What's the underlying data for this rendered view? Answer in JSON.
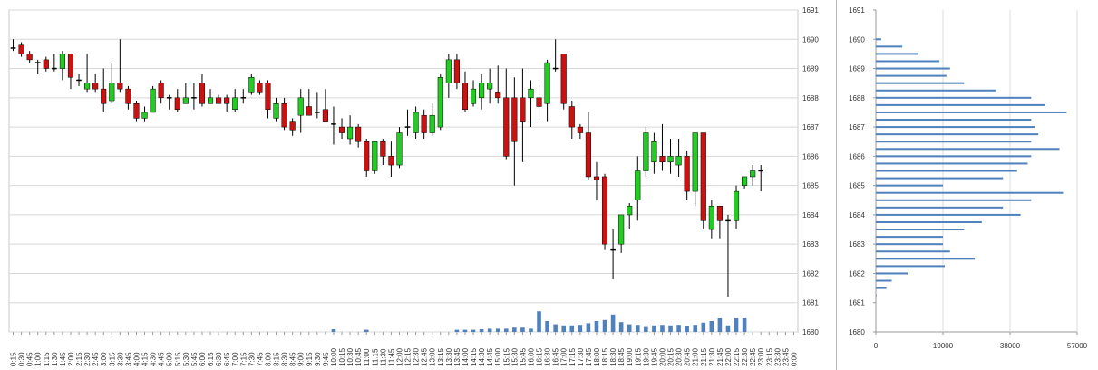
{
  "chart_data": [
    {
      "type": "candlestick",
      "title": "",
      "xlabel": "",
      "ylabel": "",
      "ylim": [
        1680,
        1691
      ],
      "yticks": [
        1680,
        1681,
        1682,
        1683,
        1684,
        1685,
        1686,
        1687,
        1688,
        1689,
        1690,
        1691
      ],
      "grid": true,
      "colors": {
        "up": "#22cc22",
        "down": "#cc1111",
        "volume": "#4f81bd",
        "grid": "#d8d8d8"
      },
      "x_labels": [
        "0:15",
        "0:30",
        "0:45",
        "1:00",
        "1:15",
        "1:30",
        "1:45",
        "2:00",
        "2:15",
        "2:30",
        "2:45",
        "3:00",
        "3:15",
        "3:30",
        "3:45",
        "4:00",
        "4:15",
        "4:30",
        "4:45",
        "5:00",
        "5:15",
        "5:30",
        "5:45",
        "6:00",
        "6:15",
        "6:30",
        "6:45",
        "7:00",
        "7:15",
        "7:30",
        "7:45",
        "8:00",
        "8:15",
        "8:30",
        "8:45",
        "9:00",
        "9:15",
        "9:30",
        "9:45",
        "10:00",
        "10:15",
        "10:30",
        "10:45",
        "11:00",
        "11:15",
        "11:30",
        "11:45",
        "12:00",
        "12:15",
        "12:30",
        "12:45",
        "13:00",
        "13:15",
        "13:30",
        "13:45",
        "14:00",
        "14:15",
        "14:30",
        "14:45",
        "15:00",
        "15:15",
        "15:30",
        "15:45",
        "16:00",
        "16:15",
        "16:30",
        "16:45",
        "17:00",
        "17:15",
        "17:30",
        "17:45",
        "18:00",
        "18:15",
        "18:30",
        "18:45",
        "19:00",
        "19:15",
        "19:30",
        "19:45",
        "20:00",
        "20:15",
        "20:30",
        "20:45",
        "21:00",
        "21:15",
        "21:30",
        "21:45",
        "22:00",
        "22:15",
        "22:30",
        "22:45",
        "23:00",
        "23:15",
        "23:30",
        "23:45",
        "0:00"
      ],
      "candles": [
        {
          "o": 1689.7,
          "h": 1690.0,
          "l": 1689.6,
          "c": 1689.7
        },
        {
          "o": 1689.8,
          "h": 1689.9,
          "l": 1689.4,
          "c": 1689.5
        },
        {
          "o": 1689.5,
          "h": 1689.6,
          "l": 1689.2,
          "c": 1689.3
        },
        {
          "o": 1689.2,
          "h": 1689.3,
          "l": 1688.8,
          "c": 1689.2
        },
        {
          "o": 1689.3,
          "h": 1689.4,
          "l": 1688.9,
          "c": 1689.0
        },
        {
          "o": 1689.0,
          "h": 1689.5,
          "l": 1688.9,
          "c": 1689.0
        },
        {
          "o": 1689.0,
          "h": 1689.6,
          "l": 1688.6,
          "c": 1689.5
        },
        {
          "o": 1689.5,
          "h": 1689.5,
          "l": 1688.3,
          "c": 1688.7
        },
        {
          "o": 1688.6,
          "h": 1688.8,
          "l": 1688.4,
          "c": 1688.6
        },
        {
          "o": 1688.3,
          "h": 1689.5,
          "l": 1688.2,
          "c": 1688.5
        },
        {
          "o": 1688.5,
          "h": 1688.8,
          "l": 1688.2,
          "c": 1688.3
        },
        {
          "o": 1688.3,
          "h": 1689.0,
          "l": 1687.5,
          "c": 1687.8
        },
        {
          "o": 1687.9,
          "h": 1689.2,
          "l": 1687.8,
          "c": 1688.5
        },
        {
          "o": 1688.5,
          "h": 1690.0,
          "l": 1688.2,
          "c": 1688.3
        },
        {
          "o": 1688.3,
          "h": 1688.4,
          "l": 1687.6,
          "c": 1687.8
        },
        {
          "o": 1687.8,
          "h": 1687.9,
          "l": 1687.2,
          "c": 1687.3
        },
        {
          "o": 1687.3,
          "h": 1687.7,
          "l": 1687.2,
          "c": 1687.5
        },
        {
          "o": 1687.5,
          "h": 1688.4,
          "l": 1687.5,
          "c": 1688.3
        },
        {
          "o": 1688.5,
          "h": 1688.6,
          "l": 1687.8,
          "c": 1688.0
        },
        {
          "o": 1688.0,
          "h": 1688.1,
          "l": 1687.6,
          "c": 1688.0
        },
        {
          "o": 1688.0,
          "h": 1688.3,
          "l": 1687.5,
          "c": 1687.6
        },
        {
          "o": 1687.8,
          "h": 1688.5,
          "l": 1687.8,
          "c": 1688.0
        },
        {
          "o": 1688.0,
          "h": 1688.5,
          "l": 1687.6,
          "c": 1688.0
        },
        {
          "o": 1688.5,
          "h": 1688.8,
          "l": 1687.7,
          "c": 1687.8
        },
        {
          "o": 1687.8,
          "h": 1688.3,
          "l": 1687.8,
          "c": 1688.0
        },
        {
          "o": 1688.0,
          "h": 1688.1,
          "l": 1687.8,
          "c": 1687.8
        },
        {
          "o": 1688.0,
          "h": 1688.1,
          "l": 1687.5,
          "c": 1687.8
        },
        {
          "o": 1687.6,
          "h": 1688.3,
          "l": 1687.5,
          "c": 1688.0
        },
        {
          "o": 1688.0,
          "h": 1688.3,
          "l": 1687.8,
          "c": 1688.0
        },
        {
          "o": 1688.2,
          "h": 1688.8,
          "l": 1688.1,
          "c": 1688.7
        },
        {
          "o": 1688.5,
          "h": 1688.6,
          "l": 1688.1,
          "c": 1688.2
        },
        {
          "o": 1688.5,
          "h": 1688.6,
          "l": 1687.3,
          "c": 1687.6
        },
        {
          "o": 1687.3,
          "h": 1688.0,
          "l": 1687.2,
          "c": 1687.8
        },
        {
          "o": 1687.8,
          "h": 1688.0,
          "l": 1686.9,
          "c": 1687.0
        },
        {
          "o": 1687.2,
          "h": 1687.3,
          "l": 1686.7,
          "c": 1686.9
        },
        {
          "o": 1687.4,
          "h": 1688.3,
          "l": 1686.8,
          "c": 1688.0
        },
        {
          "o": 1687.7,
          "h": 1688.3,
          "l": 1687.4,
          "c": 1687.4
        },
        {
          "o": 1687.5,
          "h": 1688.2,
          "l": 1687.3,
          "c": 1687.5
        },
        {
          "o": 1687.6,
          "h": 1688.3,
          "l": 1687.2,
          "c": 1687.2
        },
        {
          "o": 1687.1,
          "h": 1687.7,
          "l": 1686.4,
          "c": 1687.1
        },
        {
          "o": 1687.0,
          "h": 1687.3,
          "l": 1686.6,
          "c": 1686.8
        },
        {
          "o": 1686.6,
          "h": 1687.4,
          "l": 1686.4,
          "c": 1687.0
        },
        {
          "o": 1687.0,
          "h": 1687.1,
          "l": 1686.3,
          "c": 1686.5
        },
        {
          "o": 1686.5,
          "h": 1686.6,
          "l": 1685.3,
          "c": 1685.5
        },
        {
          "o": 1685.5,
          "h": 1686.5,
          "l": 1685.4,
          "c": 1686.5
        },
        {
          "o": 1686.5,
          "h": 1686.6,
          "l": 1685.7,
          "c": 1686.0
        },
        {
          "o": 1686.0,
          "h": 1686.5,
          "l": 1685.3,
          "c": 1685.7
        },
        {
          "o": 1685.7,
          "h": 1687.0,
          "l": 1685.6,
          "c": 1686.8
        },
        {
          "o": 1687.0,
          "h": 1687.6,
          "l": 1686.7,
          "c": 1687.0
        },
        {
          "o": 1686.8,
          "h": 1687.7,
          "l": 1686.6,
          "c": 1687.5
        },
        {
          "o": 1687.4,
          "h": 1687.6,
          "l": 1686.6,
          "c": 1686.8
        },
        {
          "o": 1686.8,
          "h": 1687.8,
          "l": 1686.7,
          "c": 1687.4
        },
        {
          "o": 1687.0,
          "h": 1688.8,
          "l": 1686.9,
          "c": 1688.7
        },
        {
          "o": 1688.5,
          "h": 1689.5,
          "l": 1688.0,
          "c": 1689.3
        },
        {
          "o": 1689.3,
          "h": 1689.5,
          "l": 1688.3,
          "c": 1688.5
        },
        {
          "o": 1688.5,
          "h": 1688.9,
          "l": 1687.5,
          "c": 1687.6
        },
        {
          "o": 1687.8,
          "h": 1688.6,
          "l": 1687.7,
          "c": 1688.3
        },
        {
          "o": 1688.0,
          "h": 1688.8,
          "l": 1687.6,
          "c": 1688.5
        },
        {
          "o": 1688.3,
          "h": 1689.0,
          "l": 1687.8,
          "c": 1688.5
        },
        {
          "o": 1688.2,
          "h": 1689.1,
          "l": 1687.8,
          "c": 1688.0
        },
        {
          "o": 1688.0,
          "h": 1689.0,
          "l": 1685.9,
          "c": 1686.0
        },
        {
          "o": 1688.0,
          "h": 1688.7,
          "l": 1685.0,
          "c": 1686.5
        },
        {
          "o": 1688.0,
          "h": 1689.0,
          "l": 1685.8,
          "c": 1687.2
        },
        {
          "o": 1688.0,
          "h": 1688.6,
          "l": 1687.0,
          "c": 1688.3
        },
        {
          "o": 1688.0,
          "h": 1688.5,
          "l": 1687.3,
          "c": 1687.7
        },
        {
          "o": 1687.8,
          "h": 1689.3,
          "l": 1687.2,
          "c": 1689.2
        },
        {
          "o": 1689.0,
          "h": 1690.0,
          "l": 1688.9,
          "c": 1689.0
        },
        {
          "o": 1689.5,
          "h": 1689.5,
          "l": 1687.6,
          "c": 1687.8
        },
        {
          "o": 1687.7,
          "h": 1687.9,
          "l": 1686.6,
          "c": 1687.0
        },
        {
          "o": 1687.0,
          "h": 1687.1,
          "l": 1686.6,
          "c": 1686.8
        },
        {
          "o": 1686.8,
          "h": 1687.5,
          "l": 1685.2,
          "c": 1685.3
        },
        {
          "o": 1685.3,
          "h": 1685.8,
          "l": 1684.5,
          "c": 1685.2
        },
        {
          "o": 1685.3,
          "h": 1685.4,
          "l": 1682.8,
          "c": 1683.0
        },
        {
          "o": 1682.8,
          "h": 1683.5,
          "l": 1681.8,
          "c": 1682.8
        },
        {
          "o": 1683.0,
          "h": 1684.0,
          "l": 1682.7,
          "c": 1684.0
        },
        {
          "o": 1684.0,
          "h": 1684.4,
          "l": 1683.5,
          "c": 1684.3
        },
        {
          "o": 1684.5,
          "h": 1686.0,
          "l": 1683.8,
          "c": 1685.5
        },
        {
          "o": 1685.5,
          "h": 1687.0,
          "l": 1685.3,
          "c": 1686.8
        },
        {
          "o": 1685.8,
          "h": 1686.8,
          "l": 1685.4,
          "c": 1686.5
        },
        {
          "o": 1686.0,
          "h": 1687.1,
          "l": 1685.5,
          "c": 1685.8
        },
        {
          "o": 1685.8,
          "h": 1686.6,
          "l": 1685.4,
          "c": 1686.0
        },
        {
          "o": 1685.7,
          "h": 1686.6,
          "l": 1685.3,
          "c": 1686.0
        },
        {
          "o": 1686.0,
          "h": 1686.2,
          "l": 1684.5,
          "c": 1684.8
        },
        {
          "o": 1684.8,
          "h": 1686.8,
          "l": 1684.3,
          "c": 1686.8
        },
        {
          "o": 1686.8,
          "h": 1686.8,
          "l": 1683.5,
          "c": 1683.8
        },
        {
          "o": 1683.5,
          "h": 1684.5,
          "l": 1683.2,
          "c": 1684.3
        },
        {
          "o": 1684.3,
          "h": 1684.3,
          "l": 1683.2,
          "c": 1683.8
        },
        {
          "o": 1683.8,
          "h": 1684.0,
          "l": 1681.2,
          "c": 1683.8
        },
        {
          "o": 1683.8,
          "h": 1685.0,
          "l": 1683.5,
          "c": 1684.8
        },
        {
          "o": 1685.0,
          "h": 1685.3,
          "l": 1684.9,
          "c": 1685.3
        },
        {
          "o": 1685.3,
          "h": 1685.7,
          "l": 1685.0,
          "c": 1685.5
        },
        {
          "o": 1685.5,
          "h": 1685.7,
          "l": 1684.8,
          "c": 1685.5
        }
      ],
      "volume": [
        0,
        0,
        0,
        0,
        0,
        0,
        0,
        0,
        0,
        0,
        0,
        0,
        0,
        0,
        0,
        0,
        0,
        0,
        0,
        0,
        0,
        0,
        0,
        0,
        0,
        0,
        0,
        0,
        0,
        0,
        0,
        0,
        0,
        0,
        0,
        0,
        0,
        0,
        0,
        0.5,
        0,
        0,
        0,
        0.4,
        0,
        0,
        0,
        0,
        0,
        0,
        0,
        0,
        0,
        0,
        0.4,
        0.4,
        0.4,
        0.5,
        0.6,
        0.6,
        0.6,
        0.8,
        0.8,
        0.6,
        3.8,
        2,
        1.4,
        1.2,
        1.2,
        1.3,
        1.6,
        2,
        2.2,
        3.2,
        1.8,
        1.4,
        1.3,
        0.9,
        1.2,
        1.3,
        1.2,
        1.3,
        1,
        1.3,
        1.7,
        2,
        2.5,
        1.2,
        2.5,
        2.5,
        0,
        0,
        0,
        0,
        0,
        0
      ]
    },
    {
      "type": "bar",
      "orientation": "horizontal",
      "title": "",
      "xlabel": "",
      "ylabel": "",
      "xlim": [
        0,
        57000
      ],
      "xticks": [
        0,
        19000,
        38000,
        57000
      ],
      "ylim": [
        1680,
        1691
      ],
      "yticks": [
        1680,
        1681,
        1682,
        1683,
        1684,
        1685,
        1686,
        1687,
        1688,
        1689,
        1690,
        1691
      ],
      "grid": true,
      "color": "#4f81bd",
      "price_levels": [
        1681.25,
        1681.5,
        1681.75,
        1682.0,
        1682.25,
        1682.5,
        1682.75,
        1683.0,
        1683.25,
        1683.5,
        1683.75,
        1684.0,
        1684.25,
        1684.5,
        1684.75,
        1685.0,
        1685.25,
        1685.5,
        1685.75,
        1686.0,
        1686.25,
        1686.5,
        1686.75,
        1687.0,
        1687.25,
        1687.5,
        1687.75,
        1688.0,
        1688.25,
        1688.5,
        1688.75,
        1689.0,
        1689.25,
        1689.5,
        1689.75,
        1690.0
      ],
      "values": [
        200,
        3000,
        4500,
        9000,
        19500,
        28000,
        21000,
        19000,
        19000,
        25000,
        30000,
        41000,
        36000,
        44000,
        53000,
        19000,
        36000,
        40000,
        43000,
        44000,
        52000,
        44000,
        46000,
        45000,
        44000,
        54000,
        48000,
        44000,
        34000,
        25000,
        20000,
        21000,
        18000,
        12000,
        7500,
        1500
      ]
    }
  ]
}
